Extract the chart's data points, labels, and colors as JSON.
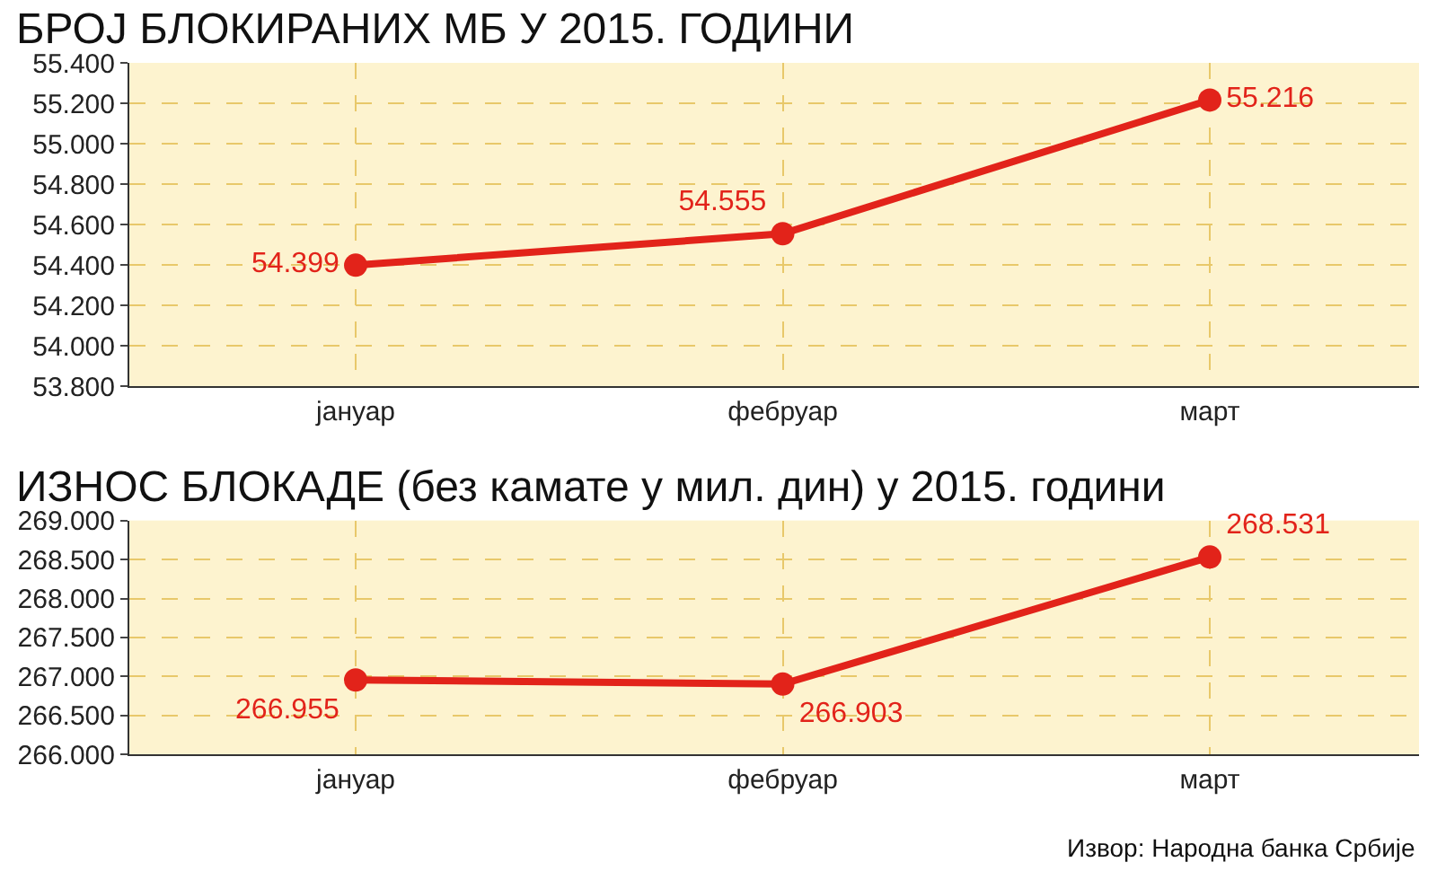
{
  "chart_data": [
    {
      "type": "line",
      "title": "БРОЈ БЛОКИРАНИХ МБ У 2015. ГОДИНИ",
      "categories": [
        "јануар",
        "фебруар",
        "март"
      ],
      "series": [
        {
          "color": "#e2231a",
          "values": [
            54399,
            54555,
            55216
          ],
          "value_labels": [
            "54.399",
            "54.555",
            "55.216"
          ]
        }
      ],
      "ylim": [
        53800,
        55400
      ],
      "yticks": [
        {
          "value": 53800,
          "label": "53.800"
        },
        {
          "value": 54000,
          "label": "54.000"
        },
        {
          "value": 54200,
          "label": "54.200"
        },
        {
          "value": 54400,
          "label": "54.400"
        },
        {
          "value": 54600,
          "label": "54.600"
        },
        {
          "value": 54800,
          "label": "54.800"
        },
        {
          "value": 55000,
          "label": "55.000"
        },
        {
          "value": 55200,
          "label": "55.200"
        },
        {
          "value": 55400,
          "label": "55.400"
        }
      ],
      "grid": true,
      "marker": "circle",
      "line_style": "solid"
    },
    {
      "type": "line",
      "title": "ИЗНОС БЛОКАДЕ (без камате у мил. дин) у 2015. години",
      "categories": [
        "јануар",
        "фебруар",
        "март"
      ],
      "series": [
        {
          "color": "#e2231a",
          "values": [
            266955,
            266903,
            268531
          ],
          "value_labels": [
            "266.955",
            "266.903",
            "268.531"
          ]
        }
      ],
      "ylim": [
        266000,
        269000
      ],
      "yticks": [
        {
          "value": 266000,
          "label": "266.000"
        },
        {
          "value": 266500,
          "label": "266.500"
        },
        {
          "value": 267000,
          "label": "267.000"
        },
        {
          "value": 267500,
          "label": "267.500"
        },
        {
          "value": 268000,
          "label": "268.000"
        },
        {
          "value": 268500,
          "label": "268.500"
        },
        {
          "value": 269000,
          "label": "269.000"
        }
      ],
      "grid": true,
      "marker": "circle",
      "line_style": "solid",
      "annotations": [
        "Извор: Народна банка Србије"
      ]
    }
  ]
}
